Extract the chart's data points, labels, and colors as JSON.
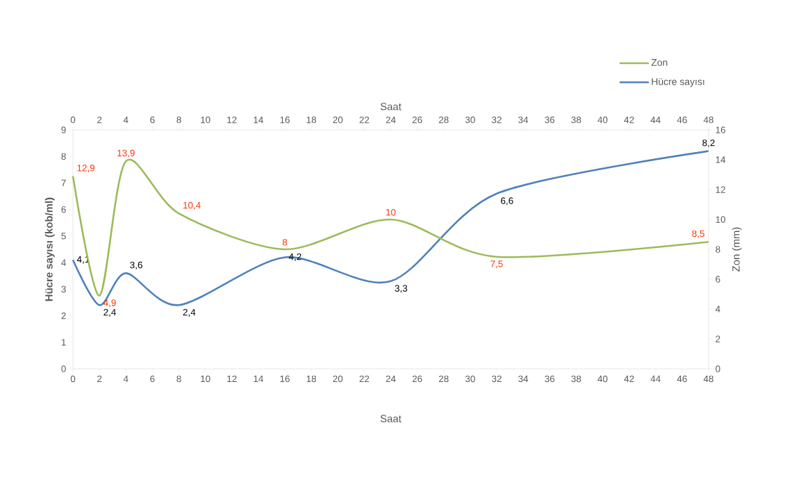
{
  "chart_data": {
    "type": "line",
    "xlabel": "Saat",
    "x2label": "Saat",
    "ylabel": "Hücre sayısı (kob/ml)",
    "y2label": "Zon (mm)",
    "x": [
      0,
      2,
      4,
      8,
      16,
      24,
      32,
      48
    ],
    "series": [
      {
        "name": "Zon",
        "color": "#9bbb59",
        "axis": "y2",
        "values": [
          12.9,
          4.9,
          13.9,
          10.4,
          8,
          10,
          7.5,
          8.5
        ],
        "value_labels": [
          "12,9",
          "4,9",
          "13,9",
          "10,4",
          "8",
          "10",
          "7,5",
          "8,5"
        ]
      },
      {
        "name": "Hücre sayısı",
        "color": "#4f81bd",
        "values": [
          4.1,
          2.4,
          3.6,
          2.4,
          4.2,
          3.3,
          6.6,
          8.2
        ],
        "value_labels": [
          "4,1",
          "2,4",
          "3,6",
          "2,4",
          "4,2",
          "3,3",
          "6,6",
          "8,2"
        ]
      }
    ],
    "xlim": [
      0,
      48
    ],
    "xticks": [
      0,
      2,
      4,
      6,
      8,
      10,
      12,
      14,
      16,
      18,
      20,
      22,
      24,
      26,
      28,
      30,
      32,
      34,
      36,
      38,
      40,
      42,
      44,
      46,
      48
    ],
    "x2lim": [
      0,
      48
    ],
    "x2ticks": [
      0,
      2,
      4,
      6,
      8,
      10,
      12,
      14,
      16,
      18,
      20,
      22,
      24,
      26,
      28,
      30,
      32,
      34,
      36,
      38,
      40,
      42,
      44,
      46,
      48
    ],
    "ylim": [
      0,
      9
    ],
    "yticks": [
      0,
      1,
      2,
      3,
      4,
      5,
      6,
      7,
      8,
      9
    ],
    "y2lim": [
      0,
      16
    ],
    "y2ticks": [
      0,
      2,
      4,
      6,
      8,
      10,
      12,
      14,
      16
    ],
    "legend": "top right",
    "marker": "none",
    "line_style": "solid",
    "grid": false
  }
}
